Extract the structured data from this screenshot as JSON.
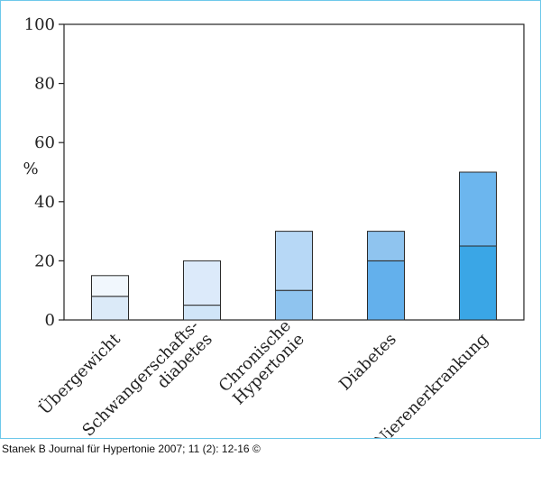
{
  "chart_data": {
    "type": "bar",
    "stacked": true,
    "categories": [
      [
        "Übergewicht"
      ],
      [
        "Schwangerschafts-",
        "diabetes"
      ],
      [
        "Chronische",
        "Hypertonie"
      ],
      [
        "Diabetes"
      ],
      [
        "Nierenerkrankung"
      ]
    ],
    "series": [
      {
        "values": [
          8,
          5,
          10,
          20,
          25
        ],
        "colors": [
          "#dbeaf8",
          "#d0e5f8",
          "#8fc4ef",
          "#63b0ec",
          "#3aa6e6"
        ]
      },
      {
        "values": [
          7,
          15,
          20,
          10,
          25
        ],
        "colors": [
          "#f1f7fd",
          "#dceafa",
          "#b7d8f6",
          "#8fc4ef",
          "#6cb6ee"
        ]
      }
    ],
    "ylabel": "%",
    "ylim": [
      0,
      100
    ],
    "yticks": [
      0,
      20,
      40,
      60,
      80,
      100
    ],
    "grid": false,
    "legend": "none"
  },
  "credit": "Stanek B Journal für Hypertonie 2007; 11 (2): 12-16 ©"
}
